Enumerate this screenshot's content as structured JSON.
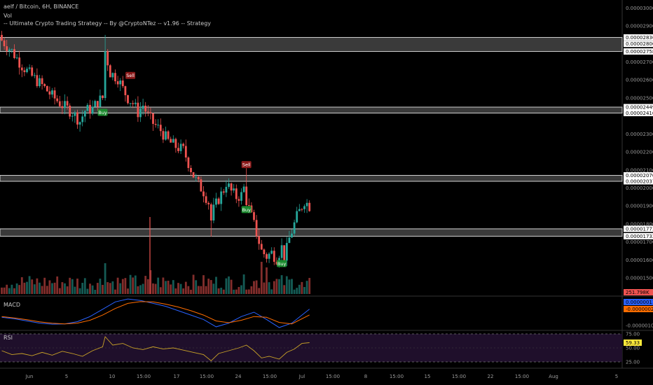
{
  "legend": {
    "symbol_line": "aelf / Bitcoin, 6H, BINANCE",
    "volume_label": "Vol",
    "strategy_line": "-- Ultimate Crypto Trading Strategy -- By @CryptoNTez -- v1.96 -- Strategy"
  },
  "panels": {
    "macd_label": "MACD",
    "rsi_label": "RSI"
  },
  "colors": {
    "background": "#000000",
    "bull": "#26a69a",
    "bear": "#ef5350",
    "zone_fill": "#6a6a6a",
    "zone_border": "#d0d0d0",
    "macd_line": "#2962ff",
    "signal_line": "#ff6d00",
    "rsi_line": "#c9a227",
    "rsi_band": "#1f0f2b",
    "buy": "#1b8a2e",
    "sell": "#8b1a1a"
  },
  "chart_data": [
    {
      "type": "candlestick",
      "title": "aelf / Bitcoin, 6H, BINANCE",
      "x_ticks": [
        "Jun",
        "5",
        "10",
        "15:00",
        "17",
        "15:00",
        "24",
        "15:00",
        "Jul",
        "15:00",
        "8",
        "15:00",
        "15",
        "15:00",
        "22",
        "15:00",
        "Aug",
        "5"
      ],
      "y_ticks": [
        "0.00003000",
        "0.00002900",
        "0.00002700",
        "0.00002600",
        "0.00002500",
        "0.00002300",
        "0.00002200",
        "0.00002100",
        "0.00002000",
        "0.00001900",
        "0.00001800",
        "0.00001700",
        "0.00001600",
        "0.00001500"
      ],
      "y_range": [
        1.45e-05,
        3.005e-05
      ],
      "price_boxes": [
        "0.00002836",
        "0.00002800",
        "0.00002758",
        "0.00002449",
        "0.00002416",
        "0.00002070",
        "0.00002037",
        "0.00001773",
        "0.00001732"
      ],
      "last_value": "251.798K",
      "zones": [
        {
          "top": 2.836e-05,
          "bottom": 2.758e-05
        },
        {
          "top": 2.449e-05,
          "bottom": 2.416e-05
        },
        {
          "top": 2.07e-05,
          "bottom": 2.037e-05
        },
        {
          "top": 1.773e-05,
          "bottom": 1.732e-05
        }
      ],
      "close_path": [
        [
          0,
          2.82e-05
        ],
        [
          4,
          2.76e-05
        ],
        [
          8,
          2.68e-05
        ],
        [
          12,
          2.62e-05
        ],
        [
          16,
          2.57e-05
        ],
        [
          20,
          2.51e-05
        ],
        [
          24,
          2.46e-05
        ],
        [
          28,
          2.42e-05
        ],
        [
          31,
          2.37e-05
        ],
        [
          33,
          2.43e-05
        ],
        [
          36,
          2.44e-05
        ],
        [
          38,
          2.48e-05
        ],
        [
          40,
          2.5e-05
        ],
        [
          41,
          2.76e-05
        ],
        [
          43,
          2.64e-05
        ],
        [
          46,
          2.61e-05
        ],
        [
          48,
          2.55e-05
        ],
        [
          50,
          2.5e-05
        ],
        [
          52,
          2.47e-05
        ],
        [
          54,
          2.42e-05
        ],
        [
          56,
          2.46e-05
        ],
        [
          58,
          2.4e-05
        ],
        [
          60,
          2.36e-05
        ],
        [
          63,
          2.32e-05
        ],
        [
          66,
          2.26e-05
        ],
        [
          69,
          2.23e-05
        ],
        [
          72,
          2.21e-05
        ],
        [
          74,
          2.14e-05
        ],
        [
          76,
          2.07e-05
        ],
        [
          78,
          2.02e-05
        ],
        [
          80,
          1.98e-05
        ],
        [
          82,
          1.92e-05
        ],
        [
          83,
          1.82e-05
        ],
        [
          84,
          1.88e-05
        ],
        [
          86,
          1.94e-05
        ],
        [
          88,
          1.99e-05
        ],
        [
          89,
          2.03e-05
        ],
        [
          91,
          1.98e-05
        ],
        [
          93,
          1.95e-05
        ],
        [
          95,
          1.96e-05
        ],
        [
          96,
          2e-05
        ],
        [
          97,
          1.93e-05
        ],
        [
          99,
          1.84e-05
        ],
        [
          101,
          1.75e-05
        ],
        [
          103,
          1.65e-05
        ],
        [
          105,
          1.62e-05
        ],
        [
          107,
          1.64e-05
        ],
        [
          109,
          1.61e-05
        ],
        [
          111,
          1.67e-05
        ],
        [
          112,
          1.62e-05
        ],
        [
          113,
          1.66e-05
        ],
        [
          114,
          1.72e-05
        ],
        [
          116,
          1.8e-05
        ],
        [
          117,
          1.84e-05
        ],
        [
          119,
          1.9e-05
        ],
        [
          120,
          1.93e-05
        ],
        [
          122,
          1.9e-05
        ]
      ],
      "signals": [
        {
          "type": "Sell",
          "candle": 51,
          "price": 2.625e-05
        },
        {
          "type": "Buy",
          "candle": 40,
          "price": 2.42e-05
        },
        {
          "type": "Sell",
          "candle": 97,
          "price": 2.13e-05
        },
        {
          "type": "Buy",
          "candle": 97,
          "price": 1.88e-05
        },
        {
          "type": "Buy",
          "candle": 111,
          "price": 1.58e-05
        }
      ]
    },
    {
      "type": "line",
      "title": "MACD",
      "y_ticks": [
        "-0.00000100"
      ],
      "y_range": [
        -1.25e-06,
        9.5e-07
      ],
      "last_values": [
        "0.00000011",
        "-0.00000029"
      ],
      "x": [
        0,
        5,
        10,
        15,
        20,
        25,
        30,
        35,
        40,
        45,
        50,
        55,
        60,
        65,
        70,
        75,
        80,
        85,
        90,
        95,
        100,
        105,
        110,
        115,
        122
      ],
      "series": [
        {
          "values": [
            -4.5e-07,
            -5.5e-07,
            -7e-07,
            -8.5e-07,
            -9.2e-07,
            -9e-07,
            -7.5e-07,
            -4e-07,
            1e-07,
            6e-07,
            8e-07,
            7e-07,
            5e-07,
            3e-07,
            0.0,
            -3e-07,
            -6e-07,
            -1.1e-06,
            -8.5e-07,
            -4e-07,
            -1e-07,
            -6e-07,
            -1.15e-06,
            -8.5e-07,
            1.1e-07
          ]
        },
        {
          "values": [
            -4e-07,
            -5e-07,
            -6.2e-07,
            -7.6e-07,
            -8.6e-07,
            -9e-07,
            -8.5e-07,
            -6.5e-07,
            -3e-07,
            1.5e-07,
            5e-07,
            6.2e-07,
            6e-07,
            4.5e-07,
            2.5e-07,
            0.0,
            -3e-07,
            -7e-07,
            -8.2e-07,
            -6.5e-07,
            -4e-07,
            -4.5e-07,
            -8e-07,
            -9e-07,
            -2.9e-07
          ]
        }
      ]
    },
    {
      "type": "line",
      "title": "RSI",
      "y_ticks": [
        "75.00",
        "50.00",
        "25.00"
      ],
      "y_range": [
        15,
        80
      ],
      "last_value": "59.33",
      "x": [
        0,
        4,
        8,
        12,
        16,
        20,
        24,
        28,
        32,
        36,
        40,
        41,
        44,
        48,
        52,
        56,
        60,
        64,
        68,
        72,
        76,
        80,
        83,
        86,
        90,
        94,
        97,
        100,
        103,
        106,
        110,
        113,
        116,
        119,
        122
      ],
      "series": [
        {
          "values": [
            45,
            38,
            40,
            36,
            42,
            37,
            44,
            40,
            35,
            45,
            52,
            70,
            55,
            58,
            50,
            47,
            52,
            48,
            50,
            46,
            42,
            38,
            27,
            40,
            45,
            50,
            55,
            45,
            32,
            35,
            30,
            42,
            48,
            58,
            59.33
          ]
        }
      ]
    }
  ]
}
